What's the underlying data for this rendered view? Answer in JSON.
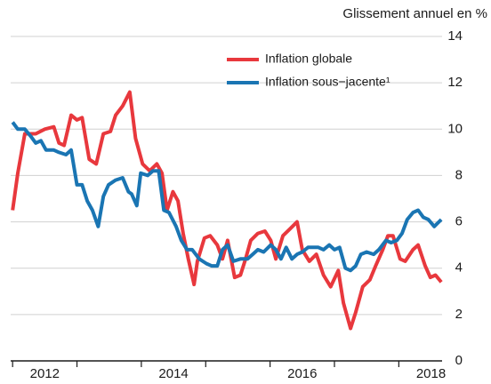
{
  "chart_data": {
    "type": "line",
    "y_axis_label": "Glissement annuel en %",
    "series": [
      {
        "name": "Inflation globale",
        "color": "#e8383d",
        "x": [
          2012.0,
          2012.08,
          2012.19,
          2012.36,
          2012.5,
          2012.64,
          2012.72,
          2012.8,
          2012.91,
          2013.0,
          2013.08,
          2013.19,
          2013.3,
          2013.41,
          2013.52,
          2013.6,
          2013.71,
          2013.82,
          2013.91,
          2014.02,
          2014.13,
          2014.24,
          2014.32,
          2014.4,
          2014.49,
          2014.57,
          2014.65,
          2014.73,
          2014.82,
          2014.87,
          2014.98,
          2015.07,
          2015.18,
          2015.26,
          2015.34,
          2015.45,
          2015.54,
          2015.62,
          2015.7,
          2015.81,
          2015.92,
          2016.01,
          2016.09,
          2016.2,
          2016.31,
          2016.42,
          2016.5,
          2016.61,
          2016.72,
          2016.83,
          2016.94,
          2017.06,
          2017.14,
          2017.25,
          2017.33,
          2017.44,
          2017.55,
          2017.64,
          2017.75,
          2017.83,
          2017.91,
          2018.02,
          2018.1,
          2018.22,
          2018.3,
          2018.41,
          2018.49,
          2018.57,
          2018.66
        ],
        "values": [
          6.5,
          8.1,
          9.8,
          9.8,
          10.0,
          10.1,
          9.4,
          9.3,
          10.6,
          10.4,
          10.5,
          8.7,
          8.5,
          9.8,
          9.9,
          10.6,
          11.0,
          11.6,
          9.6,
          8.5,
          8.2,
          8.5,
          8.1,
          6.5,
          7.3,
          6.9,
          5.5,
          4.4,
          3.3,
          4.3,
          5.3,
          5.4,
          5.0,
          4.4,
          5.2,
          3.6,
          3.7,
          4.4,
          5.2,
          5.5,
          5.6,
          5.2,
          4.4,
          5.4,
          5.7,
          6.0,
          4.8,
          4.3,
          4.6,
          3.7,
          3.2,
          3.9,
          2.5,
          1.4,
          2.1,
          3.2,
          3.5,
          4.1,
          4.8,
          5.4,
          5.4,
          4.4,
          4.3,
          4.8,
          5.0,
          4.1,
          3.6,
          3.7,
          3.4
        ]
      },
      {
        "name": "Inflation sous−jacente¹",
        "color": "#1a75b3",
        "x": [
          2012.0,
          2012.08,
          2012.19,
          2012.28,
          2012.36,
          2012.44,
          2012.52,
          2012.64,
          2012.72,
          2012.83,
          2012.91,
          2013.0,
          2013.08,
          2013.16,
          2013.24,
          2013.33,
          2013.41,
          2013.49,
          2013.6,
          2013.71,
          2013.8,
          2013.85,
          2013.93,
          2013.99,
          2014.1,
          2014.18,
          2014.27,
          2014.35,
          2014.43,
          2014.54,
          2014.62,
          2014.71,
          2014.79,
          2014.9,
          2015.01,
          2015.09,
          2015.18,
          2015.26,
          2015.34,
          2015.43,
          2015.54,
          2015.65,
          2015.73,
          2015.81,
          2015.9,
          2016.01,
          2016.09,
          2016.17,
          2016.25,
          2016.34,
          2016.42,
          2016.5,
          2016.59,
          2016.67,
          2016.75,
          2016.83,
          2016.92,
          2017.0,
          2017.08,
          2017.17,
          2017.25,
          2017.33,
          2017.41,
          2017.5,
          2017.61,
          2017.69,
          2017.8,
          2017.88,
          2017.97,
          2018.05,
          2018.13,
          2018.22,
          2018.3,
          2018.38,
          2018.46,
          2018.55,
          2018.66
        ],
        "values": [
          10.3,
          10.0,
          10.0,
          9.7,
          9.4,
          9.5,
          9.1,
          9.1,
          9.0,
          8.9,
          9.1,
          7.6,
          7.6,
          6.9,
          6.5,
          5.8,
          7.1,
          7.6,
          7.8,
          7.9,
          7.3,
          7.2,
          6.7,
          8.1,
          8.0,
          8.2,
          8.2,
          6.5,
          6.4,
          5.8,
          5.2,
          4.8,
          4.8,
          4.4,
          4.2,
          4.1,
          4.1,
          4.8,
          5.0,
          4.3,
          4.4,
          4.4,
          4.6,
          4.8,
          4.7,
          5.0,
          4.8,
          4.4,
          4.9,
          4.4,
          4.6,
          4.7,
          4.9,
          4.9,
          4.9,
          4.8,
          5.0,
          4.8,
          4.9,
          4.0,
          3.9,
          4.1,
          4.6,
          4.7,
          4.6,
          4.8,
          5.2,
          5.1,
          5.2,
          5.5,
          6.1,
          6.4,
          6.5,
          6.2,
          6.1,
          5.8,
          6.1
        ]
      }
    ],
    "xlim": [
      2011.97,
      2018.99
    ],
    "xticks": [
      {
        "value": 2012.5,
        "label": "2012"
      },
      {
        "value": 2014.5,
        "label": "2014"
      },
      {
        "value": 2016.5,
        "label": "2016"
      },
      {
        "value": 2018.5,
        "label": "2018"
      }
    ],
    "x_tick_marks": [
      2012,
      2013,
      2014,
      2015,
      2016,
      2017,
      2018
    ],
    "ylim": [
      0,
      14
    ],
    "yticks": [
      0,
      2,
      4,
      6,
      8,
      10,
      12,
      14
    ],
    "grid": true,
    "legend": "top"
  }
}
